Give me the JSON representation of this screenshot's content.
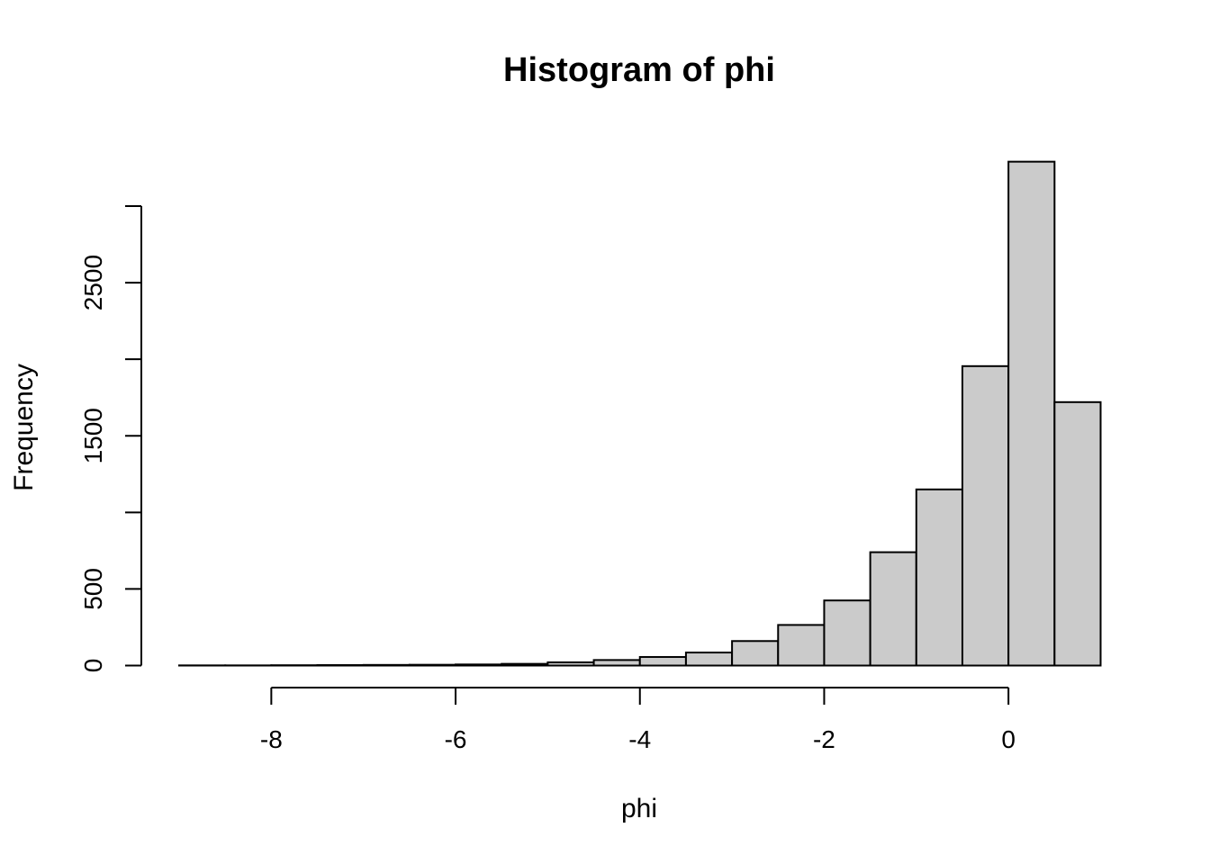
{
  "figure": {
    "background": "#FFFFFF",
    "foreground": "#000000"
  },
  "chart_data": {
    "type": "bar",
    "subtype": "histogram",
    "title": "Histogram of phi",
    "xlabel": "phi",
    "ylabel": "Frequency",
    "bin_width": 0.5,
    "bin_edges": [
      -9.0,
      -8.5,
      -8.0,
      -7.5,
      -7.0,
      -6.5,
      -6.0,
      -5.5,
      -5.0,
      -4.5,
      -4.0,
      -3.5,
      -3.0,
      -2.5,
      -2.0,
      -1.5,
      -1.0,
      -0.5,
      0.0,
      0.5,
      1.0
    ],
    "counts": [
      1,
      1,
      2,
      3,
      4,
      5,
      7,
      11,
      21,
      36,
      56,
      85,
      160,
      265,
      425,
      740,
      1150,
      1955,
      3290,
      1720
    ],
    "xlim": [
      -9.0,
      1.0
    ],
    "ylim": [
      0,
      3000
    ],
    "x_ticks": [
      {
        "value": -8,
        "label": "-8"
      },
      {
        "value": -6,
        "label": "-6"
      },
      {
        "value": -4,
        "label": "-4"
      },
      {
        "value": -2,
        "label": "-2"
      },
      {
        "value": 0,
        "label": "0"
      }
    ],
    "y_ticks": [
      {
        "value": 0,
        "label": "0"
      },
      {
        "value": 500,
        "label": "500"
      },
      {
        "value": 1000,
        "label": ""
      },
      {
        "value": 1500,
        "label": "1500"
      },
      {
        "value": 2000,
        "label": ""
      },
      {
        "value": 2500,
        "label": "2500"
      },
      {
        "value": 3000,
        "label": ""
      }
    ],
    "grid": false,
    "legend": "none",
    "bar_fill": "#CBCBCB",
    "bar_stroke": "#000000",
    "axis_color": "#000000"
  }
}
